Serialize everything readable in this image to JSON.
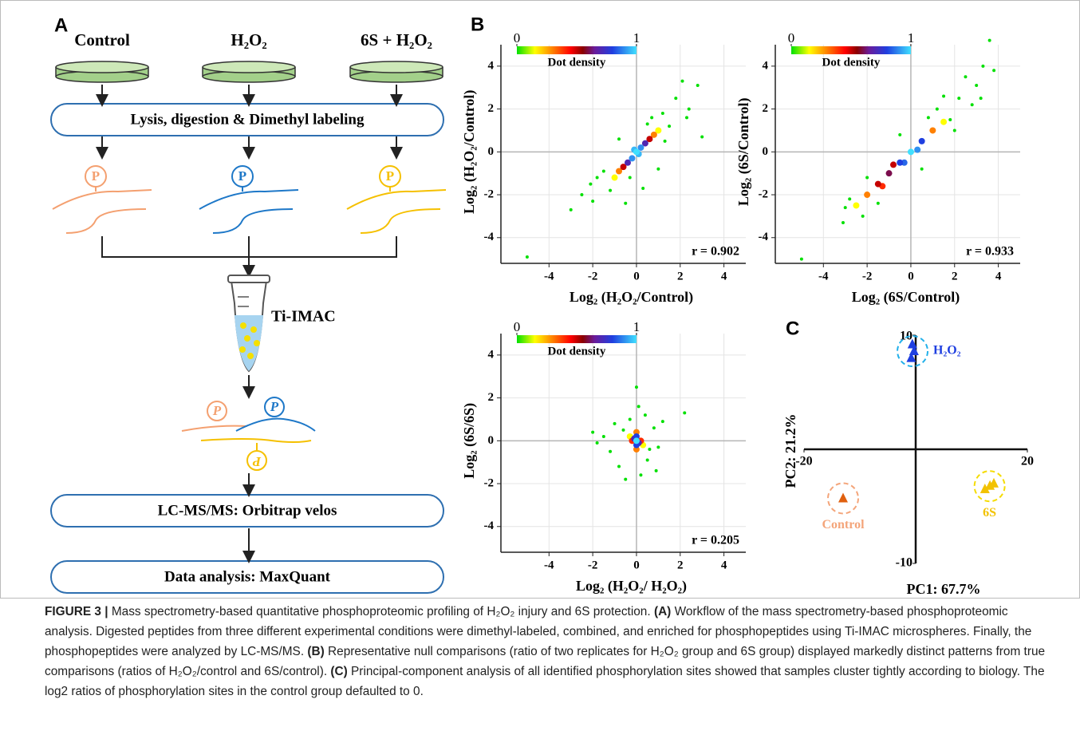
{
  "panel_labels": [
    "A",
    "B",
    "C"
  ],
  "panel_a": {
    "conditions": [
      "Control",
      "H₂O₂",
      "6S + H₂O₂"
    ],
    "steps": [
      "Lysis, digestion & Dimethyl labeling",
      "LC-MS/MS: Orbitrap velos",
      "Data analysis: MaxQuant"
    ],
    "phospho": "P",
    "enrichment": "Ti-IMAC"
  },
  "chart_data": [
    {
      "type": "scatter",
      "xlabel": "Log₂ (H₂O₂/Control)",
      "ylabel": "Log₂ (H₂O₂/Control)",
      "annotation": "r = 0.902",
      "xlim": [
        -6.2,
        5
      ],
      "ylim": [
        -5.2,
        5
      ],
      "xticks": [
        -4,
        -2,
        0,
        2,
        4
      ],
      "yticks": [
        -4,
        -2,
        0,
        2,
        4
      ],
      "grid": true,
      "colorbar": {
        "label": "Dot density",
        "ticks": [
          0,
          1
        ]
      },
      "x": [
        0,
        -0.2,
        0.2,
        -0.4,
        0.4,
        -0.6,
        0.6,
        -0.8,
        0.8,
        -0.1,
        0.1,
        -1,
        1,
        -5,
        -3,
        -2,
        -2.1,
        -1.5,
        -1.2,
        -0.8,
        -0.5,
        0.3,
        0.5,
        1.2,
        1.5,
        1.8,
        2.1,
        2.4,
        2.8,
        3.0,
        1.0,
        -1.8,
        0.7,
        -0.3,
        1.3,
        2.3,
        -2.5
      ],
      "y": [
        0,
        -0.3,
        0.2,
        -0.5,
        0.4,
        -0.7,
        0.6,
        -0.9,
        0.8,
        0.1,
        -0.1,
        -1.2,
        1,
        -4.9,
        -2.7,
        -2.3,
        -1.5,
        -0.9,
        -1.8,
        0.6,
        -2.4,
        -1.7,
        1.3,
        1.8,
        1.2,
        2.5,
        3.3,
        2.0,
        3.1,
        0.7,
        -0.8,
        -1.2,
        1.6,
        -1.2,
        0.5,
        1.6,
        -2.0
      ],
      "density": [
        1,
        0.9,
        0.9,
        0.7,
        0.7,
        0.5,
        0.5,
        0.3,
        0.3,
        0.95,
        0.95,
        0.15,
        0.15,
        0,
        0,
        0,
        0,
        0,
        0,
        0,
        0,
        0,
        0,
        0,
        0,
        0,
        0,
        0,
        0,
        0,
        0,
        0,
        0,
        0,
        0,
        0,
        0
      ]
    },
    {
      "type": "scatter",
      "xlabel": "Log₂ (6S/Control)",
      "ylabel": "Log₂ (6S/Control)",
      "annotation": "r = 0.933",
      "xlim": [
        -6.2,
        5
      ],
      "ylim": [
        -5.2,
        5
      ],
      "xticks": [
        -4,
        -2,
        0,
        2,
        4
      ],
      "yticks": [
        -4,
        -2,
        0,
        2,
        4
      ],
      "grid": true,
      "colorbar": {
        "label": "Dot density",
        "ticks": [
          0,
          1
        ]
      },
      "x": [
        -2.5,
        -2,
        -1.5,
        -1,
        -0.5,
        0,
        0.5,
        -0.8,
        -0.3,
        0.3,
        1,
        1.5,
        -1.3,
        -5,
        -3.1,
        -2.8,
        -3,
        -2,
        -1.5,
        -0.5,
        0.5,
        1.2,
        1.8,
        2.2,
        2.5,
        3.0,
        3.2,
        3.3,
        3.6,
        3.8,
        2.0,
        -2.2,
        0.8,
        2.8,
        1.5
      ],
      "y": [
        -2.5,
        -2,
        -1.5,
        -1,
        -0.5,
        0,
        0.5,
        -0.6,
        -0.5,
        0.1,
        1,
        1.4,
        -1.6,
        -5,
        -3.3,
        -2.2,
        -2.6,
        -1.2,
        -2.4,
        0.8,
        -0.8,
        2.0,
        1.5,
        2.5,
        3.5,
        3.1,
        2.5,
        4.0,
        5.2,
        3.8,
        1.0,
        -3.0,
        1.6,
        2.2,
        2.6
      ],
      "density": [
        0.15,
        0.3,
        0.5,
        0.6,
        0.8,
        1,
        0.8,
        0.5,
        0.85,
        0.9,
        0.3,
        0.15,
        0.4,
        0,
        0,
        0,
        0,
        0,
        0,
        0,
        0,
        0,
        0,
        0,
        0,
        0,
        0,
        0,
        0,
        0,
        0,
        0,
        0,
        0,
        0
      ]
    },
    {
      "type": "scatter",
      "xlabel": "Log₂ (H₂O₂/ H₂O₂)",
      "ylabel": "Log₂ (6S/6S)",
      "annotation": "r = 0.205",
      "xlim": [
        -6.2,
        5
      ],
      "ylim": [
        -5.2,
        5
      ],
      "xticks": [
        -4,
        -2,
        0,
        2,
        4
      ],
      "yticks": [
        -4,
        -2,
        0,
        2,
        4
      ],
      "grid": true,
      "colorbar": {
        "label": "Dot density",
        "ticks": [
          0,
          1
        ]
      },
      "x": [
        0,
        0,
        0,
        -0.1,
        0.1,
        -0.2,
        0.2,
        0,
        0,
        -0.3,
        0.3,
        -2,
        -1.5,
        -1.2,
        -1,
        -0.8,
        -0.5,
        -0.3,
        0,
        0.1,
        0.2,
        0.5,
        0.8,
        1,
        1.2,
        2.2,
        0.4,
        -0.6,
        0.6,
        -1.8,
        0.9
      ],
      "y": [
        0,
        0.2,
        -0.2,
        0.1,
        -0.1,
        0,
        0,
        0.4,
        -0.4,
        0.2,
        -0.2,
        0.4,
        0.2,
        -0.5,
        0.8,
        -1.2,
        -1.8,
        1.0,
        2.5,
        1.6,
        -1.6,
        -0.9,
        0.6,
        -0.3,
        0.9,
        1.3,
        1.2,
        0.5,
        -0.4,
        -0.1,
        -1.4
      ],
      "density": [
        1,
        0.8,
        0.8,
        0.7,
        0.7,
        0.4,
        0.4,
        0.3,
        0.3,
        0.15,
        0.15,
        0,
        0,
        0,
        0,
        0,
        0,
        0,
        0,
        0,
        0,
        0,
        0,
        0,
        0,
        0,
        0,
        0,
        0,
        0,
        0
      ]
    },
    {
      "type": "pca",
      "xlabel": "PC1: 67.7%",
      "ylabel": "PC2: 21.2%",
      "xlim": [
        -20,
        20
      ],
      "ylim": [
        -10,
        10
      ],
      "xticks": [
        -20,
        20
      ],
      "yticks": [
        10,
        -10
      ],
      "series": [
        {
          "name": "H₂O₂",
          "color": "#1f3fe0",
          "ring_color": "#22b0ea",
          "label_color": "#1f3fe0",
          "x": [
            -0.8,
            -0.3,
            -0.6
          ],
          "y": [
            8.0,
            8.6,
            9.2
          ]
        },
        {
          "name": "Control",
          "color": "#e0600f",
          "ring_color": "#f4a57a",
          "label_color": "#f4a57a",
          "x": [
            -13
          ],
          "y": [
            -4.3
          ]
        },
        {
          "name": "6S",
          "color": "#f2c200",
          "ring_color": "#f5dc00",
          "label_color": "#f2c200",
          "x": [
            12.4,
            13.3,
            14.0
          ],
          "y": [
            -3.5,
            -3.2,
            -3.0
          ]
        }
      ]
    }
  ],
  "caption": {
    "label": "FIGURE 3 |",
    "segments": [
      "Mass spectrometry-based quantitative phosphoproteomic profiling of H₂O₂ injury and 6S protection.",
      "(A)",
      "Workflow of the mass spectrometry-based phosphoproteomic analysis. Digested peptides from three different experimental conditions were dimethyl-labeled, combined, and enriched for phosphopeptides using Ti-IMAC microspheres. Finally, the phosphopeptides were analyzed by LC-MS/MS.",
      "(B)",
      "Representative null comparisons (ratio of two replicates for H₂O₂ group and 6S group) displayed markedly distinct patterns from true comparisons (ratios of H₂O₂/control and 6S/control).",
      "(C)",
      "Principal-component analysis of all identified phosphorylation sites showed that samples cluster tightly according to biology. The log2 ratios of phosphorylation sites in the control group defaulted to 0."
    ]
  }
}
